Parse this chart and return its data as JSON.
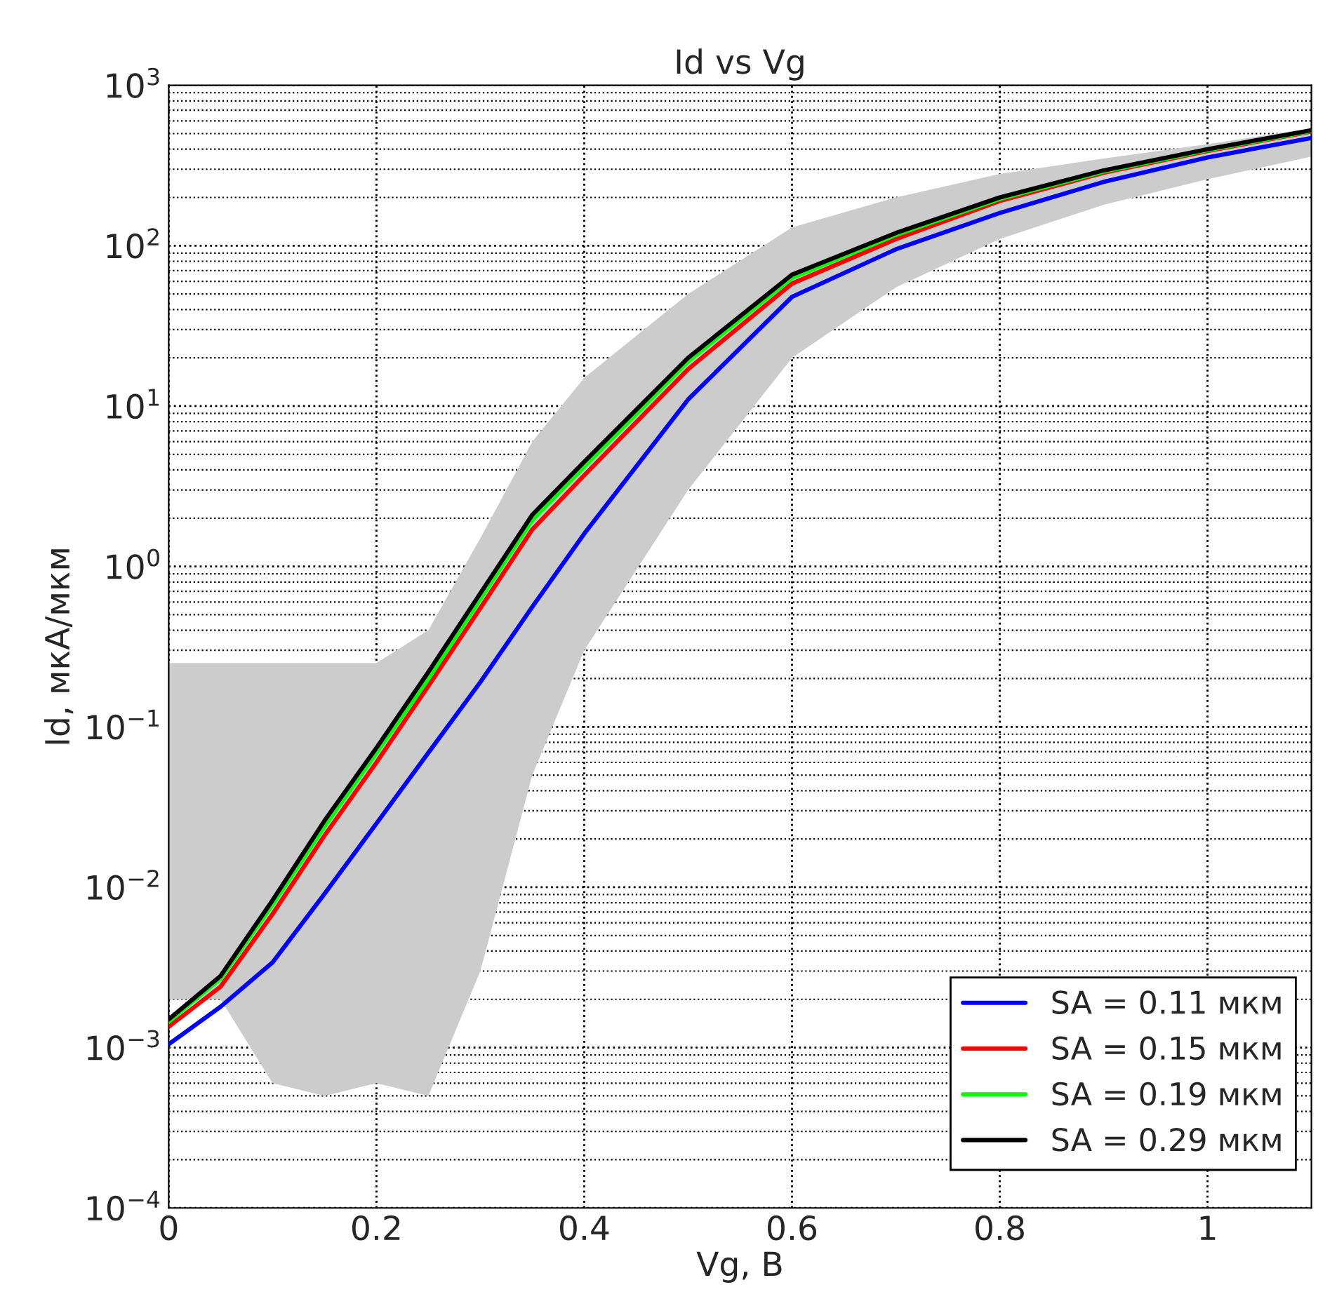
{
  "chart_data": {
    "type": "line",
    "title": "Id vs Vg",
    "xlabel": "Vg, В",
    "ylabel": "Id, мкА/мкм",
    "x": [
      0,
      0.05,
      0.1,
      0.15,
      0.2,
      0.25,
      0.3,
      0.35,
      0.4,
      0.5,
      0.6,
      0.7,
      0.8,
      0.9,
      1.0,
      1.1
    ],
    "series": [
      {
        "name": "SA = 0.11 мкм",
        "color": "#0000ff",
        "values": [
          0.00105,
          0.0018,
          0.0034,
          0.0091,
          0.025,
          0.069,
          0.19,
          0.56,
          1.6,
          11,
          48,
          95,
          160,
          250,
          355,
          470
        ]
      },
      {
        "name": "SA = 0.15 мкм",
        "color": "#ff0000",
        "values": [
          0.00135,
          0.0024,
          0.0068,
          0.021,
          0.06,
          0.18,
          0.55,
          1.7,
          3.7,
          17,
          58,
          110,
          190,
          285,
          390,
          515
        ]
      },
      {
        "name": "SA = 0.19 мкм",
        "color": "#00ff00",
        "values": [
          0.00145,
          0.0027,
          0.0078,
          0.024,
          0.069,
          0.2,
          0.63,
          1.95,
          4.2,
          19,
          63,
          117,
          196,
          290,
          395,
          520
        ]
      },
      {
        "name": "SA = 0.29 мкм",
        "color": "#000000",
        "values": [
          0.0015,
          0.0028,
          0.0083,
          0.026,
          0.074,
          0.22,
          0.68,
          2.1,
          4.5,
          20,
          66,
          120,
          200,
          295,
          400,
          525
        ],
        "lower": [
          0.002,
          0.002,
          0.0006,
          0.0005,
          0.0006,
          0.0005,
          0.003,
          0.05,
          0.3,
          3,
          20,
          55,
          110,
          180,
          260,
          360
        ],
        "upper": [
          0.25,
          0.25,
          0.25,
          0.25,
          0.25,
          0.4,
          1.5,
          6,
          15,
          50,
          130,
          200,
          280,
          350,
          430,
          540
        ]
      }
    ],
    "log": "y",
    "xlim": [
      0,
      1.1
    ],
    "xticks": [
      0,
      0.2,
      0.4,
      0.6,
      0.8,
      1
    ],
    "ylim": [
      0.0001,
      1000
    ],
    "yticks": [
      {
        "value": 0.0001,
        "label": "10$^{−4}$"
      },
      {
        "value": 0.001,
        "label": "10$^{−3}$"
      },
      {
        "value": 0.01,
        "label": "10$^{−2}$"
      },
      {
        "value": 0.1,
        "label": "10$^{−1}$"
      },
      {
        "value": 1,
        "label": "10$^{0}$"
      },
      {
        "value": 10,
        "label": "10$^{1}$"
      },
      {
        "value": 100,
        "label": "10$^{2}$"
      },
      {
        "value": 1000,
        "label": "10$^{3}$"
      }
    ],
    "grid": true,
    "legend": "bottom right",
    "line_style": "solid",
    "marker": "none"
  }
}
